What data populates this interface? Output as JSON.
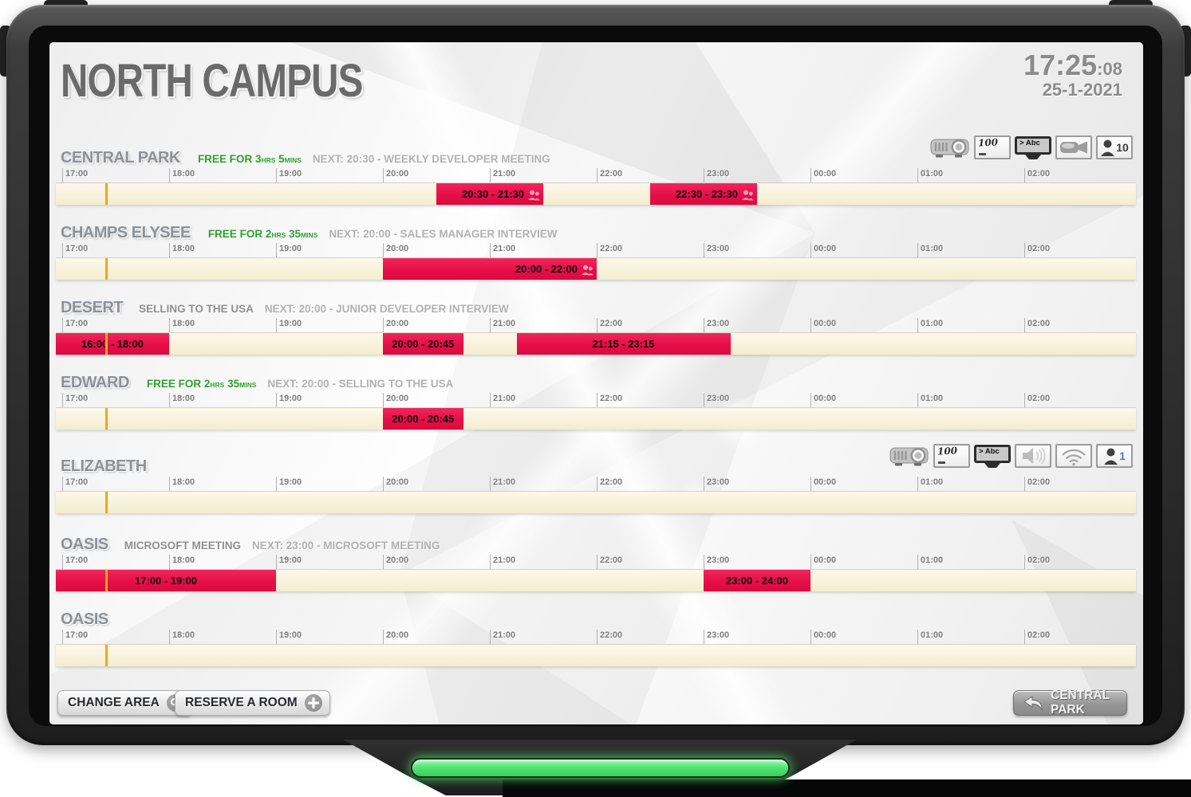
{
  "header": {
    "title": "NORTH CAMPUS",
    "time": "17:25",
    "seconds": ":08",
    "date": "25-1-2021"
  },
  "timeline": {
    "tick_labels": [
      "17:00",
      "18:00",
      "19:00",
      "20:00",
      "21:00",
      "22:00",
      "23:00",
      "00:00",
      "01:00",
      "02:00"
    ],
    "current_time_minutes_from_start": 25
  },
  "rooms": [
    {
      "name": "CENTRAL PARK",
      "free": {
        "prefix": "FREE FOR",
        "hours": "3",
        "hours_unit": "HRS",
        "minutes": "5",
        "minutes_unit": "MINS"
      },
      "next": "NEXT: 20:30 - WEEKLY DEVELOPER MEETING",
      "amenities": [
        {
          "icon": "projector"
        },
        {
          "icon": "whiteboard",
          "label": "100"
        },
        {
          "icon": "tv",
          "label": "> Abc"
        },
        {
          "icon": "camera"
        },
        {
          "icon": "person",
          "label": "10",
          "label_color": "#3b3b3b"
        }
      ],
      "bookings": [
        {
          "label": "20:30 - 21:30",
          "start_min": 210,
          "end_min": 270,
          "people_icon": true
        },
        {
          "label": "22:30 - 23:30",
          "start_min": 330,
          "end_min": 390,
          "people_icon": true
        }
      ]
    },
    {
      "name": "CHAMPS ELYSEE",
      "free": {
        "prefix": "FREE FOR",
        "hours": "2",
        "hours_unit": "HRS",
        "minutes": "35",
        "minutes_unit": "MINS"
      },
      "next": "NEXT: 20:00 - SALES MANAGER INTERVIEW",
      "amenities": [],
      "bookings": [
        {
          "label": "20:00 - 22:00",
          "start_min": 180,
          "end_min": 300,
          "people_icon": true
        }
      ]
    },
    {
      "name": "DESERT",
      "current": "SELLING TO THE USA",
      "next": "NEXT: 20:00 - JUNIOR DEVELOPER INTERVIEW",
      "amenities": [],
      "bookings": [
        {
          "label": "16:00 - 18:00",
          "start_min": -60,
          "end_min": 60
        },
        {
          "label": "20:00 - 20:45",
          "start_min": 180,
          "end_min": 225
        },
        {
          "label": "21:15 - 23:15",
          "start_min": 255,
          "end_min": 375
        }
      ]
    },
    {
      "name": "EDWARD",
      "free": {
        "prefix": "FREE FOR",
        "hours": "2",
        "hours_unit": "HRS",
        "minutes": "35",
        "minutes_unit": "MINS"
      },
      "next": "NEXT: 20:00 - SELLING TO THE USA",
      "amenities": [],
      "bookings": [
        {
          "label": "20:00 - 20:45",
          "start_min": 180,
          "end_min": 225
        }
      ]
    },
    {
      "name": "ELIZABETH",
      "amenities": [
        {
          "icon": "projector"
        },
        {
          "icon": "whiteboard",
          "label": "100"
        },
        {
          "icon": "tv",
          "label": "> Abc"
        },
        {
          "icon": "speaker"
        },
        {
          "icon": "wifi"
        },
        {
          "icon": "person",
          "label": "1",
          "label_color": "#4a7cc2"
        }
      ],
      "bookings": []
    },
    {
      "name": "OASIS",
      "current": "MICROSOFT MEETING",
      "next": "NEXT: 23:00 - MICROSOFT MEETING",
      "amenities": [],
      "bookings": [
        {
          "label": "17:00 - 19:00",
          "start_min": 0,
          "end_min": 120
        },
        {
          "label": "23:00 - 24:00",
          "start_min": 360,
          "end_min": 420
        }
      ]
    },
    {
      "name": "OASIS",
      "amenities": [],
      "bookings": []
    }
  ],
  "footer": {
    "change_area_label": "CHANGE AREA",
    "change_area_icon": "search",
    "reserve_label": "RESERVE A ROOM",
    "reserve_icon": "plus",
    "back_room_label": "CENTRAL PARK",
    "back_room_icon": "back-arrow"
  },
  "colors": {
    "booking_red": "#e60f47",
    "bar_cream": "#f8f2da",
    "now_line_orange": "#eda61e",
    "free_green": "#2f9e2f",
    "led_green": "#4be36f"
  }
}
